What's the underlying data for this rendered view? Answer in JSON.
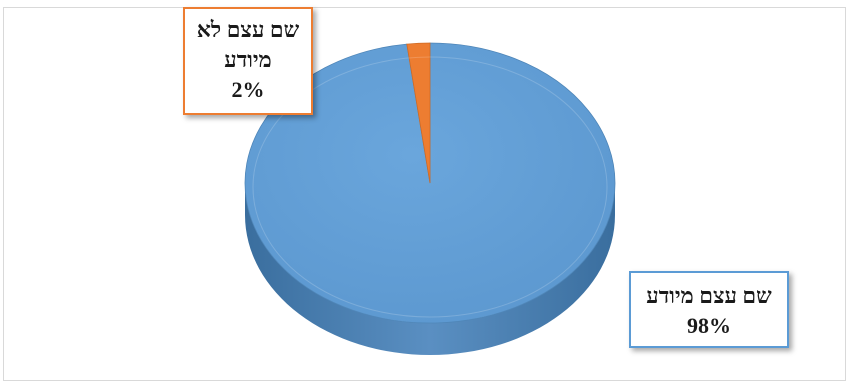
{
  "chart_data": {
    "type": "pie",
    "three_d": true,
    "categories": [
      "שם עצם מיודע",
      "שם עצם לא מיודע"
    ],
    "values": [
      98,
      2
    ],
    "colors": [
      "#5b9bd5",
      "#ed7d31"
    ],
    "data_labels": [
      {
        "category": "שם עצם מיודע",
        "value": "98%"
      },
      {
        "category": "שם עצם לא מיודע",
        "value": "2%"
      }
    ]
  },
  "labels": {
    "definite": {
      "line1": "שם עצם מיודע",
      "pct": "98%"
    },
    "indefinite": {
      "line1": "שם עצם לא",
      "line2": "מיודע",
      "pct": "2%"
    }
  }
}
